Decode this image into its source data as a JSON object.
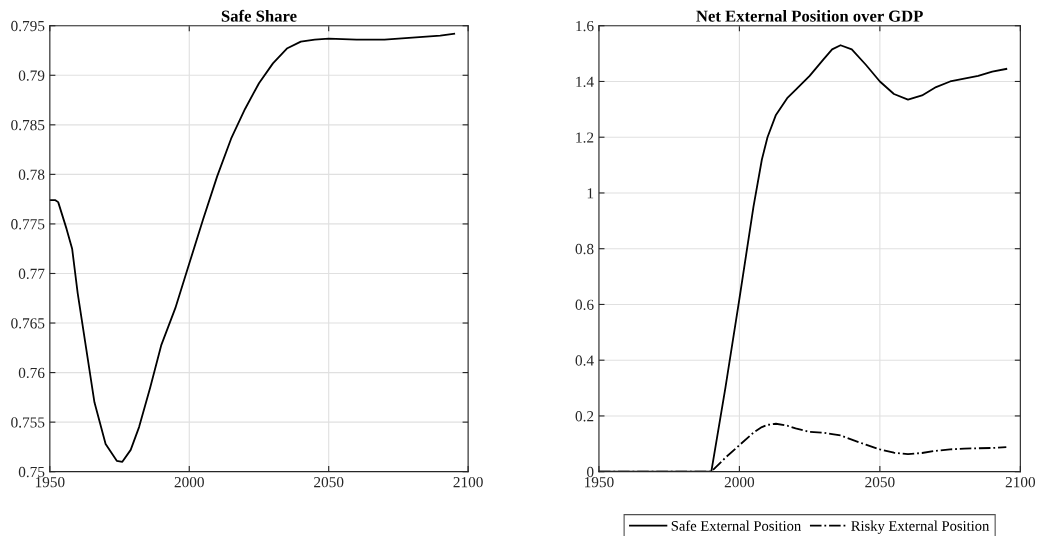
{
  "chart_data": [
    {
      "type": "line",
      "title": "Safe Share",
      "xlim": [
        1950,
        2100
      ],
      "xticks": [
        1950,
        2000,
        2050,
        2100
      ],
      "ylim": [
        0.75,
        0.795
      ],
      "yticks": [
        0.75,
        0.755,
        0.76,
        0.765,
        0.77,
        0.775,
        0.78,
        0.785,
        0.79,
        0.795
      ],
      "grid": true,
      "legend": false,
      "x": [
        1950,
        1952,
        1953,
        1956,
        1958,
        1960,
        1963,
        1966,
        1970,
        1974,
        1976,
        1979,
        1982,
        1986,
        1990,
        1995,
        2000,
        2005,
        2010,
        2015,
        2020,
        2025,
        2030,
        2035,
        2040,
        2045,
        2050,
        2060,
        2070,
        2080,
        2090,
        2095
      ],
      "series": [
        {
          "color": "#000000",
          "line_style": "solid",
          "values": [
            0.7774,
            0.7774,
            0.7772,
            0.7745,
            0.7725,
            0.768,
            0.7625,
            0.757,
            0.7528,
            0.7511,
            0.751,
            0.7522,
            0.7545,
            0.7585,
            0.7628,
            0.7665,
            0.771,
            0.7755,
            0.7798,
            0.7836,
            0.7866,
            0.7892,
            0.7912,
            0.7927,
            0.7934,
            0.7936,
            0.7937,
            0.7936,
            0.7936,
            0.7938,
            0.794,
            0.7942
          ]
        }
      ]
    },
    {
      "type": "line",
      "title": "Net External Position over GDP",
      "xlim": [
        1950,
        2100
      ],
      "xticks": [
        1950,
        2000,
        2050,
        2100
      ],
      "ylim": [
        0,
        1.6
      ],
      "yticks": [
        0,
        0.2,
        0.4,
        0.6,
        0.8,
        1,
        1.2,
        1.4,
        1.6
      ],
      "grid": true,
      "legend": "bottom",
      "x": [
        1950,
        1990,
        1995,
        2000,
        2005,
        2008,
        2010,
        2013,
        2017,
        2020,
        2025,
        2030,
        2033,
        2036,
        2040,
        2045,
        2050,
        2055,
        2060,
        2065,
        2070,
        2075,
        2080,
        2085,
        2090,
        2095
      ],
      "series": [
        {
          "name": "Safe External Position",
          "color": "#000000",
          "line_style": "solid",
          "values": [
            0,
            0,
            0.3,
            0.62,
            0.95,
            1.12,
            1.2,
            1.28,
            1.34,
            1.37,
            1.42,
            1.48,
            1.515,
            1.53,
            1.515,
            1.46,
            1.4,
            1.355,
            1.335,
            1.35,
            1.38,
            1.4,
            1.41,
            1.42,
            1.435,
            1.445
          ]
        },
        {
          "name": "Risky External Position",
          "color": "#000000",
          "line_style": "dashdot",
          "values": [
            0,
            0,
            0.05,
            0.095,
            0.14,
            0.16,
            0.168,
            0.172,
            0.165,
            0.155,
            0.143,
            0.14,
            0.135,
            0.13,
            0.115,
            0.097,
            0.08,
            0.068,
            0.063,
            0.067,
            0.075,
            0.08,
            0.083,
            0.084,
            0.085,
            0.088
          ]
        }
      ]
    }
  ]
}
